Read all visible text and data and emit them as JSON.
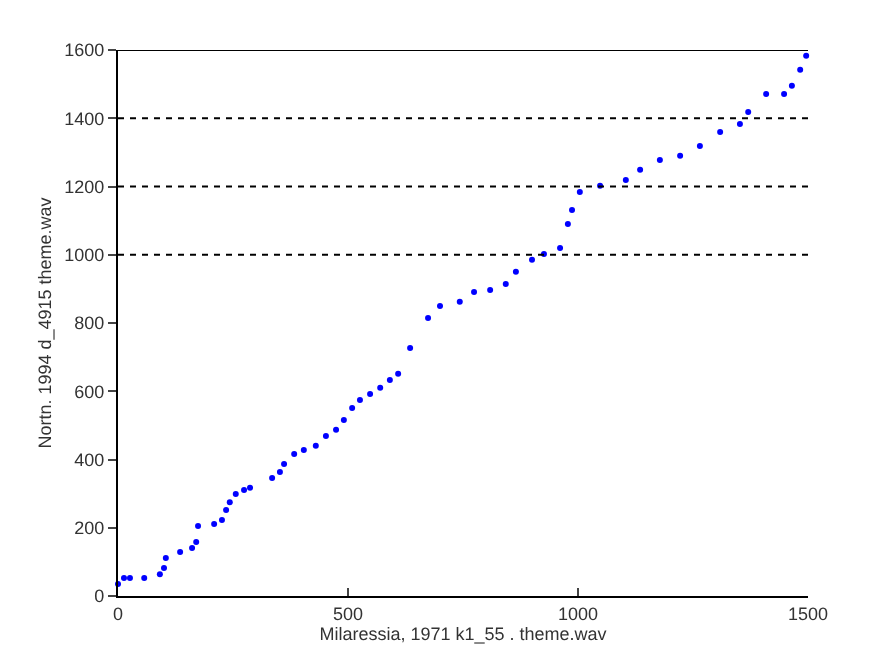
{
  "chart_data": {
    "type": "scatter",
    "xlabel": "Milaressia, 1971 k1_55 . theme.wav",
    "ylabel": "Nortn. 1994 d_4915 theme.wav",
    "marker": "circle",
    "series": [
      {
        "color": "#0000ff",
        "x": [
          0,
          13,
          26,
          57,
          91,
          100,
          104,
          135,
          161,
          170,
          174,
          209,
          226,
          235,
          243,
          256,
          274,
          287,
          335,
          352,
          361,
          383,
          404,
          430,
          452,
          474,
          491,
          509,
          526,
          548,
          570,
          591,
          609,
          635,
          674,
          700,
          743,
          774,
          809,
          843,
          865,
          900,
          926,
          961,
          978,
          987,
          1004,
          1048,
          1104,
          1135,
          1178,
          1222,
          1265,
          1309,
          1352,
          1370,
          1409,
          1448,
          1465,
          1483,
          1496
        ],
        "values": [
          35,
          53,
          53,
          53,
          64,
          82,
          111,
          129,
          141,
          158,
          205,
          211,
          223,
          252,
          275,
          299,
          311,
          317,
          346,
          363,
          387,
          416,
          428,
          440,
          469,
          487,
          516,
          551,
          574,
          592,
          610,
          633,
          651,
          727,
          815,
          850,
          862,
          891,
          897,
          914,
          950,
          985,
          1002,
          1020,
          1090,
          1131,
          1184,
          1202,
          1219,
          1249,
          1278,
          1290,
          1319,
          1360,
          1383,
          1418,
          1471,
          1471,
          1495,
          1542,
          1583
        ]
      }
    ],
    "xlim": [
      0,
      1500
    ],
    "xticks": [
      0,
      500,
      1000,
      1500
    ],
    "ylim": [
      0,
      1600
    ],
    "yticks": [
      0,
      200,
      400,
      600,
      800,
      1000,
      1200,
      1400,
      1600
    ],
    "ref_lines": [
      {
        "axis": "y",
        "value": 1000,
        "line_style": "dotted",
        "color": "#000000"
      },
      {
        "axis": "y",
        "value": 1200,
        "line_style": "dotted",
        "color": "#000000"
      },
      {
        "axis": "y",
        "value": 1400,
        "line_style": "dotted",
        "color": "#000000"
      },
      {
        "axis": "y",
        "value": 1600,
        "line_style": "solid",
        "color": "#000000"
      }
    ],
    "legend": false
  }
}
